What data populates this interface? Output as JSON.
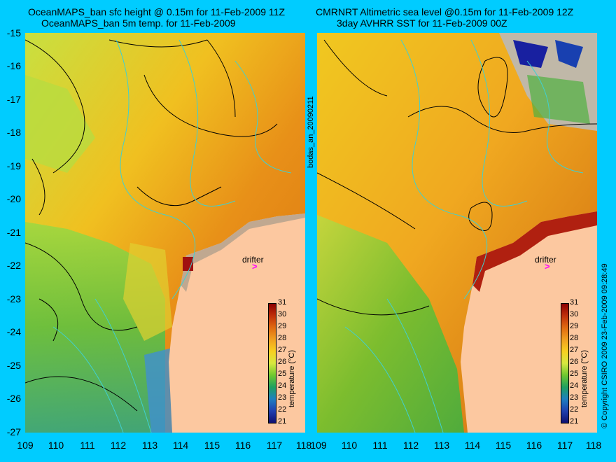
{
  "titles": {
    "left_line1": "OceanMAPS_ban sfc height @ 0.15m for 11-Feb-2009 11Z",
    "left_line2": "OceanMAPS_ban 5m temp. for 11-Feb-2009",
    "right_line1": "CMRNRT Altimetric sea level  @0.15m  for 11-Feb-2009 12Z",
    "right_line2": "3day AVHRR SST for 11-Feb-2009 00Z"
  },
  "axes": {
    "lat_labels": [
      "-15",
      "-16",
      "-17",
      "-18",
      "-19",
      "-20",
      "-21",
      "-22",
      "-23",
      "-24",
      "-25",
      "-26",
      "-27"
    ],
    "lon_labels": [
      "109",
      "110",
      "111",
      "112",
      "113",
      "114",
      "115",
      "116",
      "117",
      "118"
    ],
    "right_lon_labels": [
      "109",
      "110",
      "111",
      "112",
      "113",
      "114",
      "115",
      "116",
      "117",
      "118"
    ]
  },
  "annotations": {
    "drifter_label": "drifter",
    "drifter_marker": ">",
    "vertical_id": "bodas_an_20090211",
    "copyright": "© Copyright CSIRO 2009   23-Feb-2009 09:28:49"
  },
  "colorbar": {
    "ticks": [
      "31",
      "30",
      "29",
      "28",
      "27",
      "26",
      "25",
      "24",
      "23",
      "22",
      "21"
    ],
    "label": "temperature (°C)",
    "colors": [
      "#8b0000",
      "#c0300a",
      "#e06a10",
      "#f0a020",
      "#f8d020",
      "#d8e840",
      "#70c830",
      "#20a060",
      "#2080c0",
      "#2040b0",
      "#101070"
    ]
  },
  "map_colors": {
    "land": "#fcc8a0",
    "warm": "#e8901a",
    "mid": "#f0c020",
    "cool": "#a8d840",
    "cold": "#50b840",
    "contour": "#000000",
    "bathy": "#40d0d0"
  }
}
